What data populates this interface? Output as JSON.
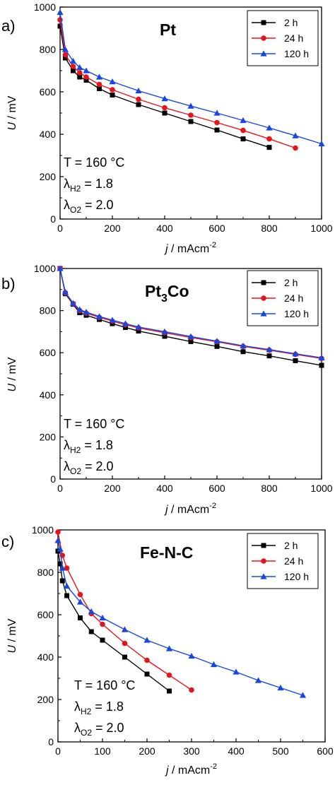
{
  "figure": {
    "colors": {
      "2 h": "#000000",
      "24 h": "#e8141c",
      "120 h": "#1846e6"
    }
  },
  "chart_data": [
    {
      "type": "line",
      "panel_label": "a)",
      "title": "Pt",
      "xlabel": "j / mAcm-2",
      "ylabel": "U / mV",
      "xlim": [
        0,
        1000
      ],
      "ylim": [
        0,
        1000
      ],
      "x_ticks": [
        0,
        200,
        400,
        600,
        800,
        1000
      ],
      "y_ticks": [
        0,
        200,
        400,
        600,
        800,
        1000
      ],
      "legend_position": "top-right",
      "conditions": [
        "T = 160 °C",
        "λH2 = 1.8",
        "λO2 = 2.0"
      ],
      "series": [
        {
          "name": "2 h",
          "marker": "square",
          "x": [
            0,
            20,
            50,
            75,
            100,
            150,
            200,
            300,
            400,
            500,
            600,
            700,
            800
          ],
          "y": [
            910,
            760,
            700,
            670,
            655,
            615,
            585,
            540,
            500,
            460,
            420,
            378,
            338
          ]
        },
        {
          "name": "24 h",
          "marker": "circle",
          "x": [
            0,
            20,
            50,
            75,
            100,
            150,
            200,
            300,
            400,
            500,
            600,
            700,
            800,
            900
          ],
          "y": [
            940,
            775,
            720,
            690,
            670,
            635,
            610,
            565,
            525,
            490,
            455,
            418,
            378,
            335
          ]
        },
        {
          "name": "120 h",
          "marker": "triangle",
          "x": [
            0,
            20,
            50,
            75,
            100,
            150,
            200,
            300,
            400,
            500,
            600,
            700,
            800,
            900,
            1000
          ],
          "y": [
            975,
            800,
            745,
            715,
            700,
            670,
            648,
            605,
            568,
            533,
            500,
            465,
            430,
            393,
            355
          ]
        }
      ]
    },
    {
      "type": "line",
      "panel_label": "b)",
      "title": "Pt3Co",
      "xlabel": "j / mAcm-2",
      "ylabel": "U / mV",
      "xlim": [
        0,
        1000
      ],
      "ylim": [
        0,
        1000
      ],
      "x_ticks": [
        0,
        200,
        400,
        600,
        800,
        1000
      ],
      "y_ticks": [
        0,
        200,
        400,
        600,
        800,
        1000
      ],
      "legend_position": "top-right",
      "conditions": [
        "T = 160 °C",
        "λH2 = 1.8",
        "λO2 = 2.0"
      ],
      "series": [
        {
          "name": "2 h",
          "marker": "square",
          "x": [
            0,
            20,
            50,
            75,
            100,
            150,
            200,
            250,
            300,
            400,
            500,
            600,
            700,
            800,
            900,
            1000
          ],
          "y": [
            1000,
            880,
            830,
            790,
            778,
            758,
            738,
            720,
            703,
            678,
            653,
            630,
            605,
            585,
            562,
            540
          ]
        },
        {
          "name": "24 h",
          "marker": "circle",
          "x": [
            0,
            20,
            50,
            75,
            100,
            150,
            200,
            250,
            300,
            400,
            500,
            600,
            700,
            800,
            900,
            1000
          ],
          "y": [
            1000,
            885,
            833,
            800,
            788,
            768,
            750,
            733,
            718,
            695,
            672,
            652,
            630,
            612,
            592,
            573
          ]
        },
        {
          "name": "120 h",
          "marker": "triangle",
          "x": [
            0,
            20,
            50,
            75,
            100,
            150,
            200,
            250,
            300,
            400,
            500,
            600,
            700,
            800,
            900,
            1000
          ],
          "y": [
            1000,
            888,
            835,
            805,
            793,
            772,
            755,
            738,
            722,
            700,
            677,
            655,
            633,
            615,
            595,
            576
          ]
        }
      ]
    },
    {
      "type": "line",
      "panel_label": "c)",
      "title": "Fe-N-C",
      "xlabel": "j / mAcm-2",
      "ylabel": "U / mV",
      "xlim": [
        0,
        600
      ],
      "ylim": [
        0,
        1000
      ],
      "x_ticks": [
        0,
        100,
        200,
        300,
        400,
        500,
        600
      ],
      "y_ticks": [
        0,
        200,
        400,
        600,
        800,
        1000
      ],
      "legend_position": "top-right",
      "conditions": [
        "T = 160 °C",
        "λH2 = 1.8",
        "λO2 = 2.0"
      ],
      "series": [
        {
          "name": "2 h",
          "marker": "square",
          "x": [
            0,
            5,
            10,
            20,
            50,
            75,
            100,
            150,
            200,
            250
          ],
          "y": [
            900,
            840,
            760,
            690,
            585,
            520,
            480,
            400,
            320,
            240
          ]
        },
        {
          "name": "24 h",
          "marker": "circle",
          "x": [
            0,
            10,
            20,
            50,
            75,
            100,
            150,
            200,
            250,
            300
          ],
          "y": [
            990,
            880,
            820,
            695,
            605,
            555,
            465,
            385,
            315,
            245
          ]
        },
        {
          "name": "120 h",
          "marker": "triangle",
          "x": [
            0,
            5,
            10,
            20,
            50,
            75,
            100,
            150,
            200,
            250,
            300,
            350,
            400,
            450,
            500,
            550
          ],
          "y": [
            950,
            910,
            820,
            735,
            660,
            615,
            585,
            530,
            480,
            440,
            405,
            365,
            330,
            290,
            255,
            220
          ]
        }
      ]
    }
  ]
}
